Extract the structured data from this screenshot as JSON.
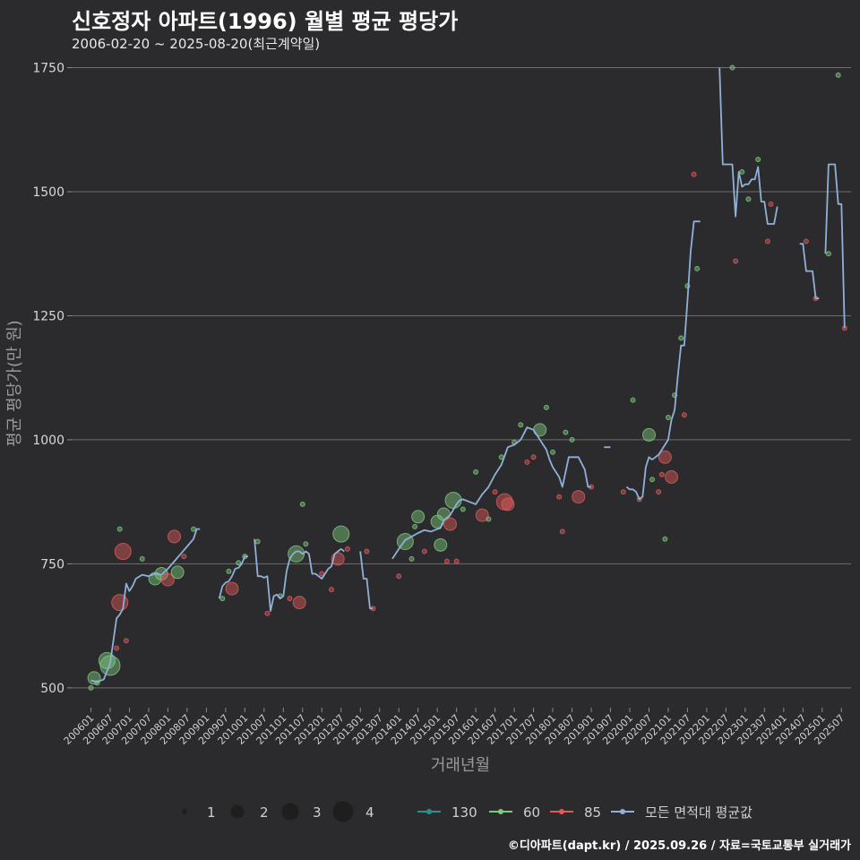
{
  "title": "신호정자 아파트(1996) 월별 평균 평당가",
  "subtitle": "2006-02-20 ~ 2025-08-20(최근계약일)",
  "credit": "©디아파트(dapt.kr) / 2025.09.26 / 자료=국토교통부 실거래가",
  "chart_data": {
    "type": "line",
    "xlabel": "거래년월",
    "ylabel": "평균 평당가(만 원)",
    "ylim": [
      460,
      1760
    ],
    "yticks": [
      500,
      750,
      1000,
      1250,
      1500,
      1750
    ],
    "x_range": [
      "2006-01",
      "2025-10"
    ],
    "xticks": [
      "200601",
      "200607",
      "200701",
      "200707",
      "200801",
      "200807",
      "200901",
      "200907",
      "201001",
      "201007",
      "201101",
      "201107",
      "201201",
      "201207",
      "201301",
      "201307",
      "201401",
      "201407",
      "201501",
      "201507",
      "201601",
      "201607",
      "201701",
      "201707",
      "201801",
      "201807",
      "201901",
      "201907",
      "202001",
      "202007",
      "202101",
      "202107",
      "202201",
      "202207",
      "202301",
      "202307",
      "202401",
      "202407",
      "202501",
      "202507"
    ],
    "grid": true,
    "legend_size": {
      "title": "",
      "entries": [
        "1",
        "2",
        "3",
        "4"
      ]
    },
    "legend_color": {
      "entries": [
        "130",
        "60",
        "85",
        "모든 면적대 평균값"
      ],
      "colors": [
        "#2f8f8c",
        "#7fc97f",
        "#e05a5a",
        "#8fb0d8"
      ]
    },
    "series": [
      {
        "name": "모든 면적대 평균값",
        "color": "#8fb0d8",
        "points": [
          [
            "2006-01",
            515
          ],
          [
            "2006-03",
            512
          ],
          [
            "2006-05",
            517
          ],
          [
            "2006-07",
            550
          ],
          [
            "2006-09",
            640
          ],
          [
            "2006-10",
            648
          ],
          [
            "2006-11",
            660
          ],
          [
            "2006-12",
            710
          ],
          [
            "2007-01",
            695
          ],
          [
            "2007-02",
            705
          ],
          [
            "2007-03",
            720
          ],
          [
            "2007-05",
            728
          ],
          [
            "2007-07",
            725
          ],
          [
            "2007-09",
            730
          ],
          [
            "2007-11",
            728
          ],
          [
            "2008-01",
            740
          ],
          [
            "2008-03",
            755
          ],
          [
            "2008-05",
            770
          ],
          [
            "2008-07",
            785
          ],
          [
            "2008-09",
            800
          ],
          [
            "2008-10",
            820
          ],
          [
            "2008-11",
            820
          ],
          null,
          [
            "2009-05",
            680
          ],
          [
            "2009-06",
            705
          ],
          [
            "2009-07",
            712
          ],
          [
            "2009-08",
            715
          ],
          [
            "2009-09",
            725
          ],
          [
            "2009-10",
            740
          ],
          [
            "2009-11",
            742
          ],
          [
            "2009-12",
            750
          ],
          [
            "2010-01",
            765
          ],
          [
            "2010-02",
            765
          ],
          null,
          [
            "2010-04",
            800
          ],
          [
            "2010-05",
            725
          ],
          [
            "2010-06",
            725
          ],
          [
            "2010-07",
            722
          ],
          [
            "2010-08",
            725
          ],
          [
            "2010-09",
            655
          ],
          [
            "2010-10",
            685
          ],
          [
            "2010-11",
            688
          ],
          [
            "2010-12",
            680
          ],
          [
            "2011-01",
            685
          ],
          [
            "2011-02",
            735
          ],
          [
            "2011-03",
            760
          ],
          [
            "2011-04",
            770
          ],
          [
            "2011-05",
            775
          ],
          [
            "2011-06",
            775
          ],
          [
            "2011-07",
            770
          ],
          [
            "2011-08",
            775
          ],
          [
            "2011-09",
            770
          ],
          [
            "2011-10",
            730
          ],
          [
            "2011-11",
            730
          ],
          [
            "2011-12",
            725
          ],
          [
            "2012-01",
            720
          ],
          [
            "2012-02",
            730
          ],
          [
            "2012-03",
            740
          ],
          [
            "2012-04",
            745
          ],
          [
            "2012-05",
            770
          ],
          [
            "2012-06",
            775
          ],
          [
            "2012-07",
            780
          ],
          [
            "2012-08",
            775
          ],
          null,
          [
            "2013-01",
            775
          ],
          [
            "2013-02",
            720
          ],
          [
            "2013-03",
            720
          ],
          [
            "2013-04",
            660
          ],
          [
            "2013-05",
            660
          ],
          null,
          [
            "2013-11",
            760
          ],
          [
            "2014-01",
            780
          ],
          [
            "2014-03",
            798
          ],
          [
            "2014-05",
            805
          ],
          [
            "2014-07",
            812
          ],
          [
            "2014-09",
            818
          ],
          [
            "2014-11",
            815
          ],
          [
            "2015-01",
            820
          ],
          [
            "2015-02",
            822
          ],
          [
            "2015-03",
            838
          ],
          [
            "2015-05",
            848
          ],
          [
            "2015-07",
            870
          ],
          [
            "2015-08",
            878
          ],
          [
            "2015-09",
            880
          ],
          [
            "2015-11",
            875
          ],
          [
            "2016-01",
            870
          ],
          [
            "2016-03",
            890
          ],
          [
            "2016-05",
            905
          ],
          [
            "2016-07",
            930
          ],
          [
            "2016-09",
            950
          ],
          [
            "2016-11",
            985
          ],
          [
            "2017-01",
            990
          ],
          [
            "2017-03",
            1000
          ],
          [
            "2017-05",
            1025
          ],
          [
            "2017-07",
            1020
          ],
          [
            "2017-09",
            1000
          ],
          [
            "2017-11",
            980
          ],
          [
            "2017-12",
            960
          ],
          [
            "2018-01",
            945
          ],
          [
            "2018-03",
            925
          ],
          [
            "2018-04",
            905
          ],
          [
            "2018-06",
            965
          ],
          [
            "2018-08",
            965
          ],
          [
            "2018-09",
            965
          ],
          [
            "2018-11",
            940
          ],
          [
            "2018-12",
            905
          ],
          [
            "2019-01",
            905
          ],
          null,
          [
            "2019-05",
            985
          ],
          [
            "2019-07",
            985
          ],
          null,
          [
            "2019-12",
            905
          ],
          [
            "2020-01",
            900
          ],
          [
            "2020-02",
            900
          ],
          [
            "2020-03",
            895
          ],
          [
            "2020-04",
            880
          ],
          [
            "2020-05",
            885
          ],
          [
            "2020-06",
            945
          ],
          [
            "2020-07",
            965
          ],
          [
            "2020-08",
            960
          ],
          [
            "2020-09",
            965
          ],
          [
            "2020-10",
            970
          ],
          [
            "2020-11",
            980
          ],
          [
            "2020-12",
            990
          ],
          [
            "2021-01",
            1000
          ],
          [
            "2021-02",
            1040
          ],
          [
            "2021-03",
            1060
          ],
          [
            "2021-04",
            1130
          ],
          [
            "2021-05",
            1190
          ],
          [
            "2021-06",
            1190
          ],
          [
            "2021-07",
            1280
          ],
          [
            "2021-08",
            1380
          ],
          [
            "2021-09",
            1440
          ],
          [
            "2021-11",
            1440
          ],
          null,
          [
            "2022-05",
            1750
          ],
          [
            "2022-06",
            1555
          ],
          [
            "2022-07",
            1555
          ],
          [
            "2022-09",
            1555
          ],
          [
            "2022-10",
            1450
          ],
          [
            "2022-11",
            1540
          ],
          [
            "2022-12",
            1510
          ],
          [
            "2023-01",
            1515
          ],
          [
            "2023-02",
            1515
          ],
          [
            "2023-03",
            1525
          ],
          [
            "2023-04",
            1525
          ],
          [
            "2023-05",
            1550
          ],
          [
            "2023-06",
            1480
          ],
          [
            "2023-07",
            1480
          ],
          [
            "2023-08",
            1435
          ],
          [
            "2023-09",
            1435
          ],
          [
            "2023-10",
            1435
          ],
          [
            "2023-11",
            1470
          ],
          null,
          [
            "2024-06",
            1395
          ],
          [
            "2024-07",
            1395
          ],
          [
            "2024-08",
            1340
          ],
          [
            "2024-09",
            1340
          ],
          [
            "2024-10",
            1340
          ],
          [
            "2024-11",
            1285
          ],
          [
            "2024-12",
            1285
          ],
          null,
          [
            "2025-02",
            1375
          ],
          [
            "2025-03",
            1555
          ],
          [
            "2025-04",
            1555
          ],
          [
            "2025-05",
            1555
          ],
          [
            "2025-06",
            1475
          ],
          [
            "2025-07",
            1475
          ],
          [
            "2025-08",
            1225
          ]
        ]
      }
    ],
    "scatter": [
      [
        "2006-01",
        500,
        "60",
        1
      ],
      [
        "2006-02",
        520,
        "60",
        2
      ],
      [
        "2006-03",
        510,
        "60",
        1
      ],
      [
        "2006-06",
        555,
        "60",
        3
      ],
      [
        "2006-07",
        545,
        "60",
        4
      ],
      [
        "2006-09",
        580,
        "85",
        1
      ],
      [
        "2006-10",
        672,
        "85",
        3
      ],
      [
        "2006-10",
        820,
        "60",
        1
      ],
      [
        "2006-11",
        775,
        "85",
        3
      ],
      [
        "2006-12",
        595,
        "85",
        1
      ],
      [
        "2007-05",
        760,
        "60",
        1
      ],
      [
        "2007-09",
        720,
        "60",
        2
      ],
      [
        "2007-11",
        730,
        "60",
        2
      ],
      [
        "2008-01",
        718,
        "85",
        2
      ],
      [
        "2008-03",
        805,
        "85",
        2
      ],
      [
        "2008-04",
        733,
        "60",
        2
      ],
      [
        "2008-06",
        765,
        "85",
        1
      ],
      [
        "2008-09",
        820,
        "60",
        1
      ],
      [
        "2009-06",
        680,
        "60",
        1
      ],
      [
        "2009-08",
        735,
        "60",
        1
      ],
      [
        "2009-09",
        700,
        "85",
        2
      ],
      [
        "2009-11",
        752,
        "60",
        1
      ],
      [
        "2010-01",
        765,
        "60",
        1
      ],
      [
        "2010-05",
        795,
        "60",
        1
      ],
      [
        "2010-08",
        650,
        "85",
        1
      ],
      [
        "2010-12",
        685,
        "60",
        1
      ],
      [
        "2011-03",
        680,
        "85",
        1
      ],
      [
        "2011-05",
        770,
        "60",
        3
      ],
      [
        "2011-06",
        672,
        "85",
        2
      ],
      [
        "2011-07",
        870,
        "60",
        1
      ],
      [
        "2011-08",
        790,
        "60",
        1
      ],
      [
        "2012-01",
        730,
        "85",
        1
      ],
      [
        "2012-04",
        698,
        "85",
        1
      ],
      [
        "2012-06",
        760,
        "85",
        2
      ],
      [
        "2012-07",
        810,
        "60",
        3
      ],
      [
        "2012-09",
        780,
        "85",
        1
      ],
      [
        "2013-03",
        775,
        "85",
        1
      ],
      [
        "2013-05",
        660,
        "85",
        1
      ],
      [
        "2014-01",
        725,
        "85",
        1
      ],
      [
        "2014-03",
        795,
        "60",
        3
      ],
      [
        "2014-05",
        760,
        "60",
        1
      ],
      [
        "2014-06",
        825,
        "60",
        1
      ],
      [
        "2014-07",
        845,
        "60",
        2
      ],
      [
        "2014-09",
        775,
        "85",
        1
      ],
      [
        "2015-01",
        835,
        "60",
        2
      ],
      [
        "2015-02",
        788,
        "60",
        2
      ],
      [
        "2015-03",
        850,
        "60",
        2
      ],
      [
        "2015-04",
        755,
        "85",
        1
      ],
      [
        "2015-05",
        830,
        "85",
        2
      ],
      [
        "2015-06",
        878,
        "60",
        3
      ],
      [
        "2015-07",
        755,
        "85",
        1
      ],
      [
        "2015-09",
        860,
        "60",
        1
      ],
      [
        "2016-01",
        935,
        "60",
        1
      ],
      [
        "2016-03",
        848,
        "85",
        2
      ],
      [
        "2016-05",
        840,
        "60",
        1
      ],
      [
        "2016-07",
        895,
        "85",
        1
      ],
      [
        "2016-09",
        965,
        "60",
        1
      ],
      [
        "2016-10",
        875,
        "85",
        3
      ],
      [
        "2016-11",
        870,
        "85",
        2
      ],
      [
        "2017-01",
        995,
        "60",
        1
      ],
      [
        "2017-03",
        1030,
        "60",
        1
      ],
      [
        "2017-05",
        955,
        "85",
        1
      ],
      [
        "2017-07",
        965,
        "85",
        1
      ],
      [
        "2017-09",
        1020,
        "60",
        2
      ],
      [
        "2017-11",
        1065,
        "60",
        1
      ],
      [
        "2018-01",
        975,
        "60",
        1
      ],
      [
        "2018-03",
        885,
        "85",
        1
      ],
      [
        "2018-04",
        815,
        "85",
        1
      ],
      [
        "2018-05",
        1015,
        "60",
        1
      ],
      [
        "2018-07",
        1000,
        "60",
        1
      ],
      [
        "2018-09",
        885,
        "85",
        2
      ],
      [
        "2019-01",
        905,
        "85",
        1
      ],
      [
        "2019-11",
        895,
        "85",
        1
      ],
      [
        "2020-02",
        1080,
        "60",
        1
      ],
      [
        "2020-04",
        880,
        "85",
        1
      ],
      [
        "2020-07",
        1010,
        "60",
        2
      ],
      [
        "2020-08",
        920,
        "60",
        1
      ],
      [
        "2020-10",
        895,
        "85",
        1
      ],
      [
        "2020-11",
        930,
        "85",
        1
      ],
      [
        "2020-12",
        965,
        "85",
        2
      ],
      [
        "2020-12",
        800,
        "60",
        1
      ],
      [
        "2021-01",
        1045,
        "60",
        1
      ],
      [
        "2021-02",
        925,
        "85",
        2
      ],
      [
        "2021-03",
        1090,
        "60",
        1
      ],
      [
        "2021-05",
        1205,
        "60",
        1
      ],
      [
        "2021-06",
        1050,
        "85",
        1
      ],
      [
        "2021-07",
        1310,
        "60",
        1
      ],
      [
        "2021-09",
        1535,
        "85",
        1
      ],
      [
        "2021-10",
        1345,
        "60",
        1
      ],
      [
        "2022-09",
        1750,
        "60",
        1
      ],
      [
        "2022-10",
        1360,
        "85",
        1
      ],
      [
        "2022-12",
        1540,
        "60",
        1
      ],
      [
        "2023-02",
        1485,
        "60",
        1
      ],
      [
        "2023-05",
        1565,
        "60",
        1
      ],
      [
        "2023-08",
        1400,
        "85",
        1
      ],
      [
        "2023-09",
        1475,
        "85",
        1
      ],
      [
        "2024-08",
        1400,
        "85",
        1
      ],
      [
        "2024-11",
        1285,
        "85",
        1
      ],
      [
        "2025-03",
        1375,
        "60",
        1
      ],
      [
        "2025-06",
        1735,
        "60",
        1
      ],
      [
        "2025-08",
        1225,
        "85",
        1
      ]
    ]
  }
}
